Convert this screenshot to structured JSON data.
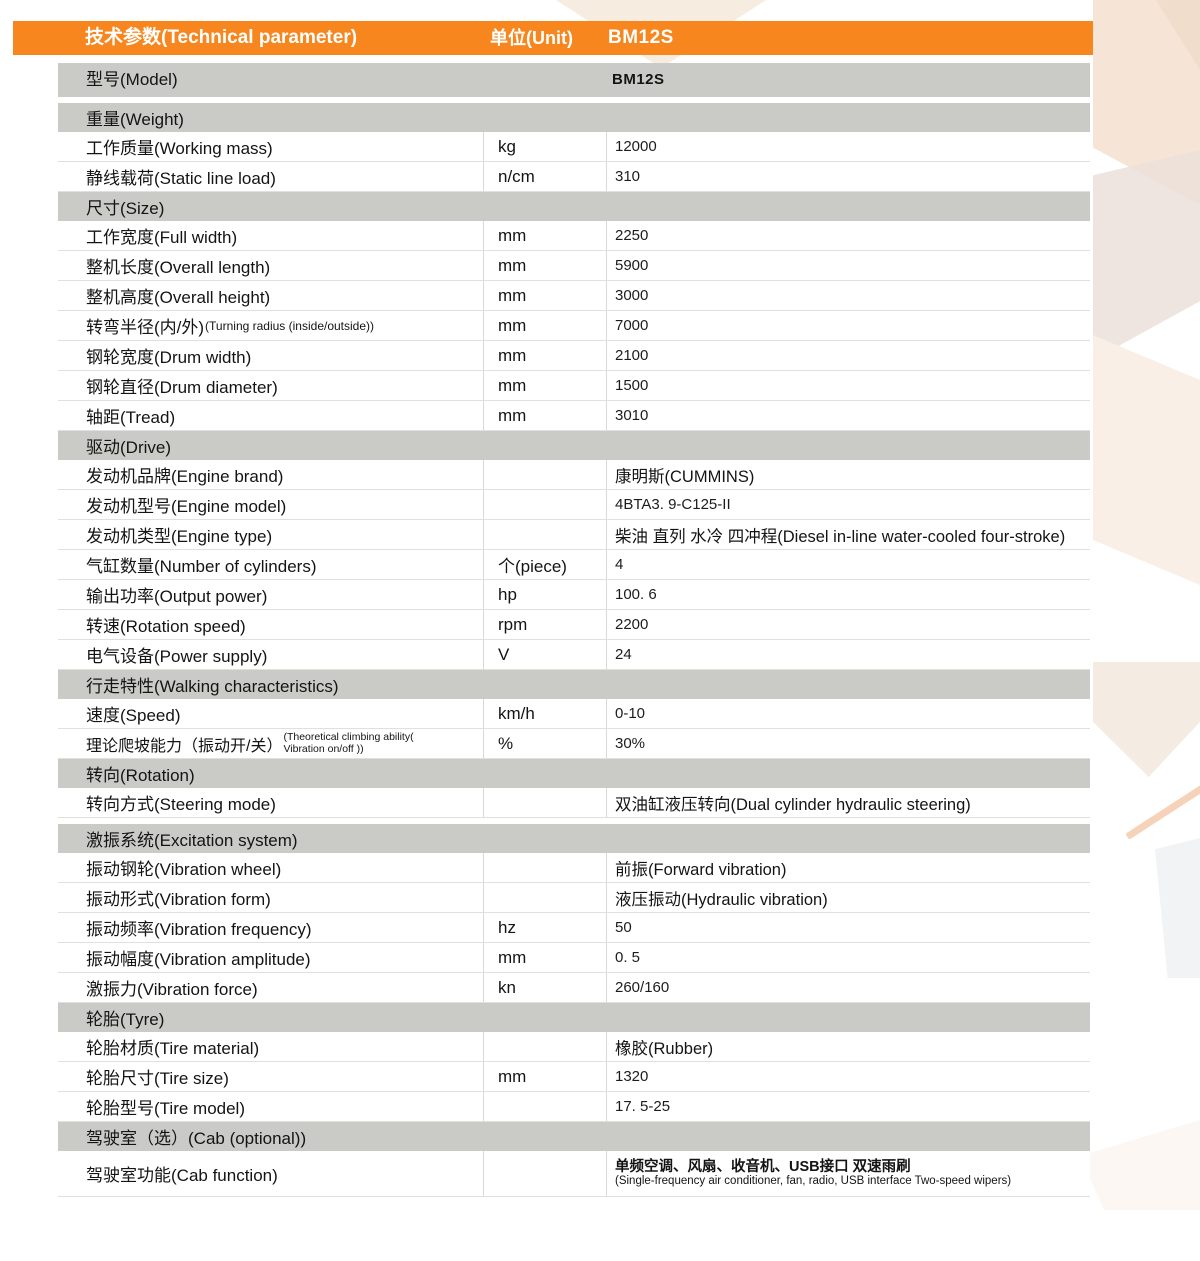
{
  "colors": {
    "accent_orange": "#F6861D",
    "section_gray": "#CACAC6",
    "row_border": "#E0E0DD",
    "decor_peach": "#F6E5D6"
  },
  "header": {
    "title": "技术参数(Technical parameter)",
    "unit_label": "单位(Unit)",
    "model": "BM12S"
  },
  "table": {
    "model_row": {
      "label": "型号(Model)",
      "value": "BM12S"
    },
    "sections": [
      {
        "title": "重量(Weight)",
        "rows": [
          {
            "label": "工作质量(Working mass)",
            "unit": "kg",
            "value": "12000"
          },
          {
            "label": "静线载荷(Static line load)",
            "unit": "n/cm",
            "value": "310"
          }
        ]
      },
      {
        "title": "尺寸(Size)",
        "rows": [
          {
            "label": "工作宽度(Full width)",
            "unit": "mm",
            "value": "2250"
          },
          {
            "label": "整机长度(Overall length)",
            "unit": "mm",
            "value": "5900"
          },
          {
            "label": "整机高度(Overall height)",
            "unit": "mm",
            "value": "3000"
          },
          {
            "label": "转弯半径(内/外)",
            "label_small": "(Turning radius (inside/outside))",
            "unit": "mm",
            "value": "7000"
          },
          {
            "label": "钢轮宽度(Drum width)",
            "unit": "mm",
            "value": "2100"
          },
          {
            "label": "钢轮直径(Drum diameter)",
            "unit": "mm",
            "value": "1500"
          },
          {
            "label": "轴距(Tread)",
            "unit": "mm",
            "value": "3010"
          }
        ]
      },
      {
        "title": "驱动(Drive)",
        "rows": [
          {
            "label": "发动机品牌(Engine brand)",
            "unit": "",
            "value": "康明斯(CUMMINS)"
          },
          {
            "label": "发动机型号(Engine model)",
            "unit": "",
            "value": "4BTA3. 9-C125-II"
          },
          {
            "label": "发动机类型(Engine type)",
            "unit": "",
            "value": "柴油 直列 水冷 四冲程(Diesel in-line water-cooled four-stroke)"
          },
          {
            "label": "气缸数量(Number of cylinders)",
            "unit": "个(piece)",
            "value": "4"
          },
          {
            "label": "输出功率(Output power)",
            "unit": "hp",
            "value": "100. 6"
          },
          {
            "label": "转速(Rotation speed)",
            "unit": "rpm",
            "value": "2200"
          },
          {
            "label": "电气设备(Power supply)",
            "unit": "V",
            "value": "24"
          }
        ]
      },
      {
        "title": "行走特性(Walking characteristics)",
        "rows": [
          {
            "label": "速度(Speed)",
            "unit": "km/h",
            "value": "0-10"
          },
          {
            "label": "理论爬坡能力（振动开/关）",
            "label_small": "(Theoretical climbing ability( Vibration on/off ))",
            "label_small_stacked": true,
            "unit": "%",
            "value": "30%"
          }
        ]
      },
      {
        "title": "转向(Rotation)",
        "rows": [
          {
            "label": "转向方式(Steering mode)",
            "unit": "",
            "value": "双油缸液压转向(Dual cylinder hydraulic steering)"
          }
        ]
      },
      {
        "title": "激振系统(Excitation system)",
        "gap_before": true,
        "rows": [
          {
            "label": "振动钢轮(Vibration wheel)",
            "unit": "",
            "value": "前振(Forward vibration)"
          },
          {
            "label": "振动形式(Vibration form)",
            "unit": "",
            "value": "液压振动(Hydraulic vibration)"
          },
          {
            "label": "振动频率(Vibration frequency)",
            "unit": "hz",
            "value": "50"
          },
          {
            "label": "振动幅度(Vibration amplitude)",
            "unit": "mm",
            "value": "0. 5"
          },
          {
            "label": "激振力(Vibration force)",
            "unit": "kn",
            "value": "260/160"
          }
        ]
      },
      {
        "title": "轮胎(Tyre)",
        "rows": [
          {
            "label": "轮胎材质(Tire material)",
            "unit": "",
            "value": "橡胶(Rubber)"
          },
          {
            "label": "轮胎尺寸(Tire size)",
            "unit": "mm",
            "value": "1320"
          },
          {
            "label": "轮胎型号(Tire model)",
            "unit": "",
            "value": "17. 5-25"
          }
        ]
      },
      {
        "title": "驾驶室（选）(Cab (optional))",
        "rows": [
          {
            "label": "驾驶室功能(Cab function)",
            "unit": "",
            "value": "单频空调、风扇、收音机、USB接口  双速雨刷",
            "value_small": "(Single-frequency air conditioner, fan, radio, USB interface Two-speed wipers)"
          }
        ]
      }
    ]
  }
}
